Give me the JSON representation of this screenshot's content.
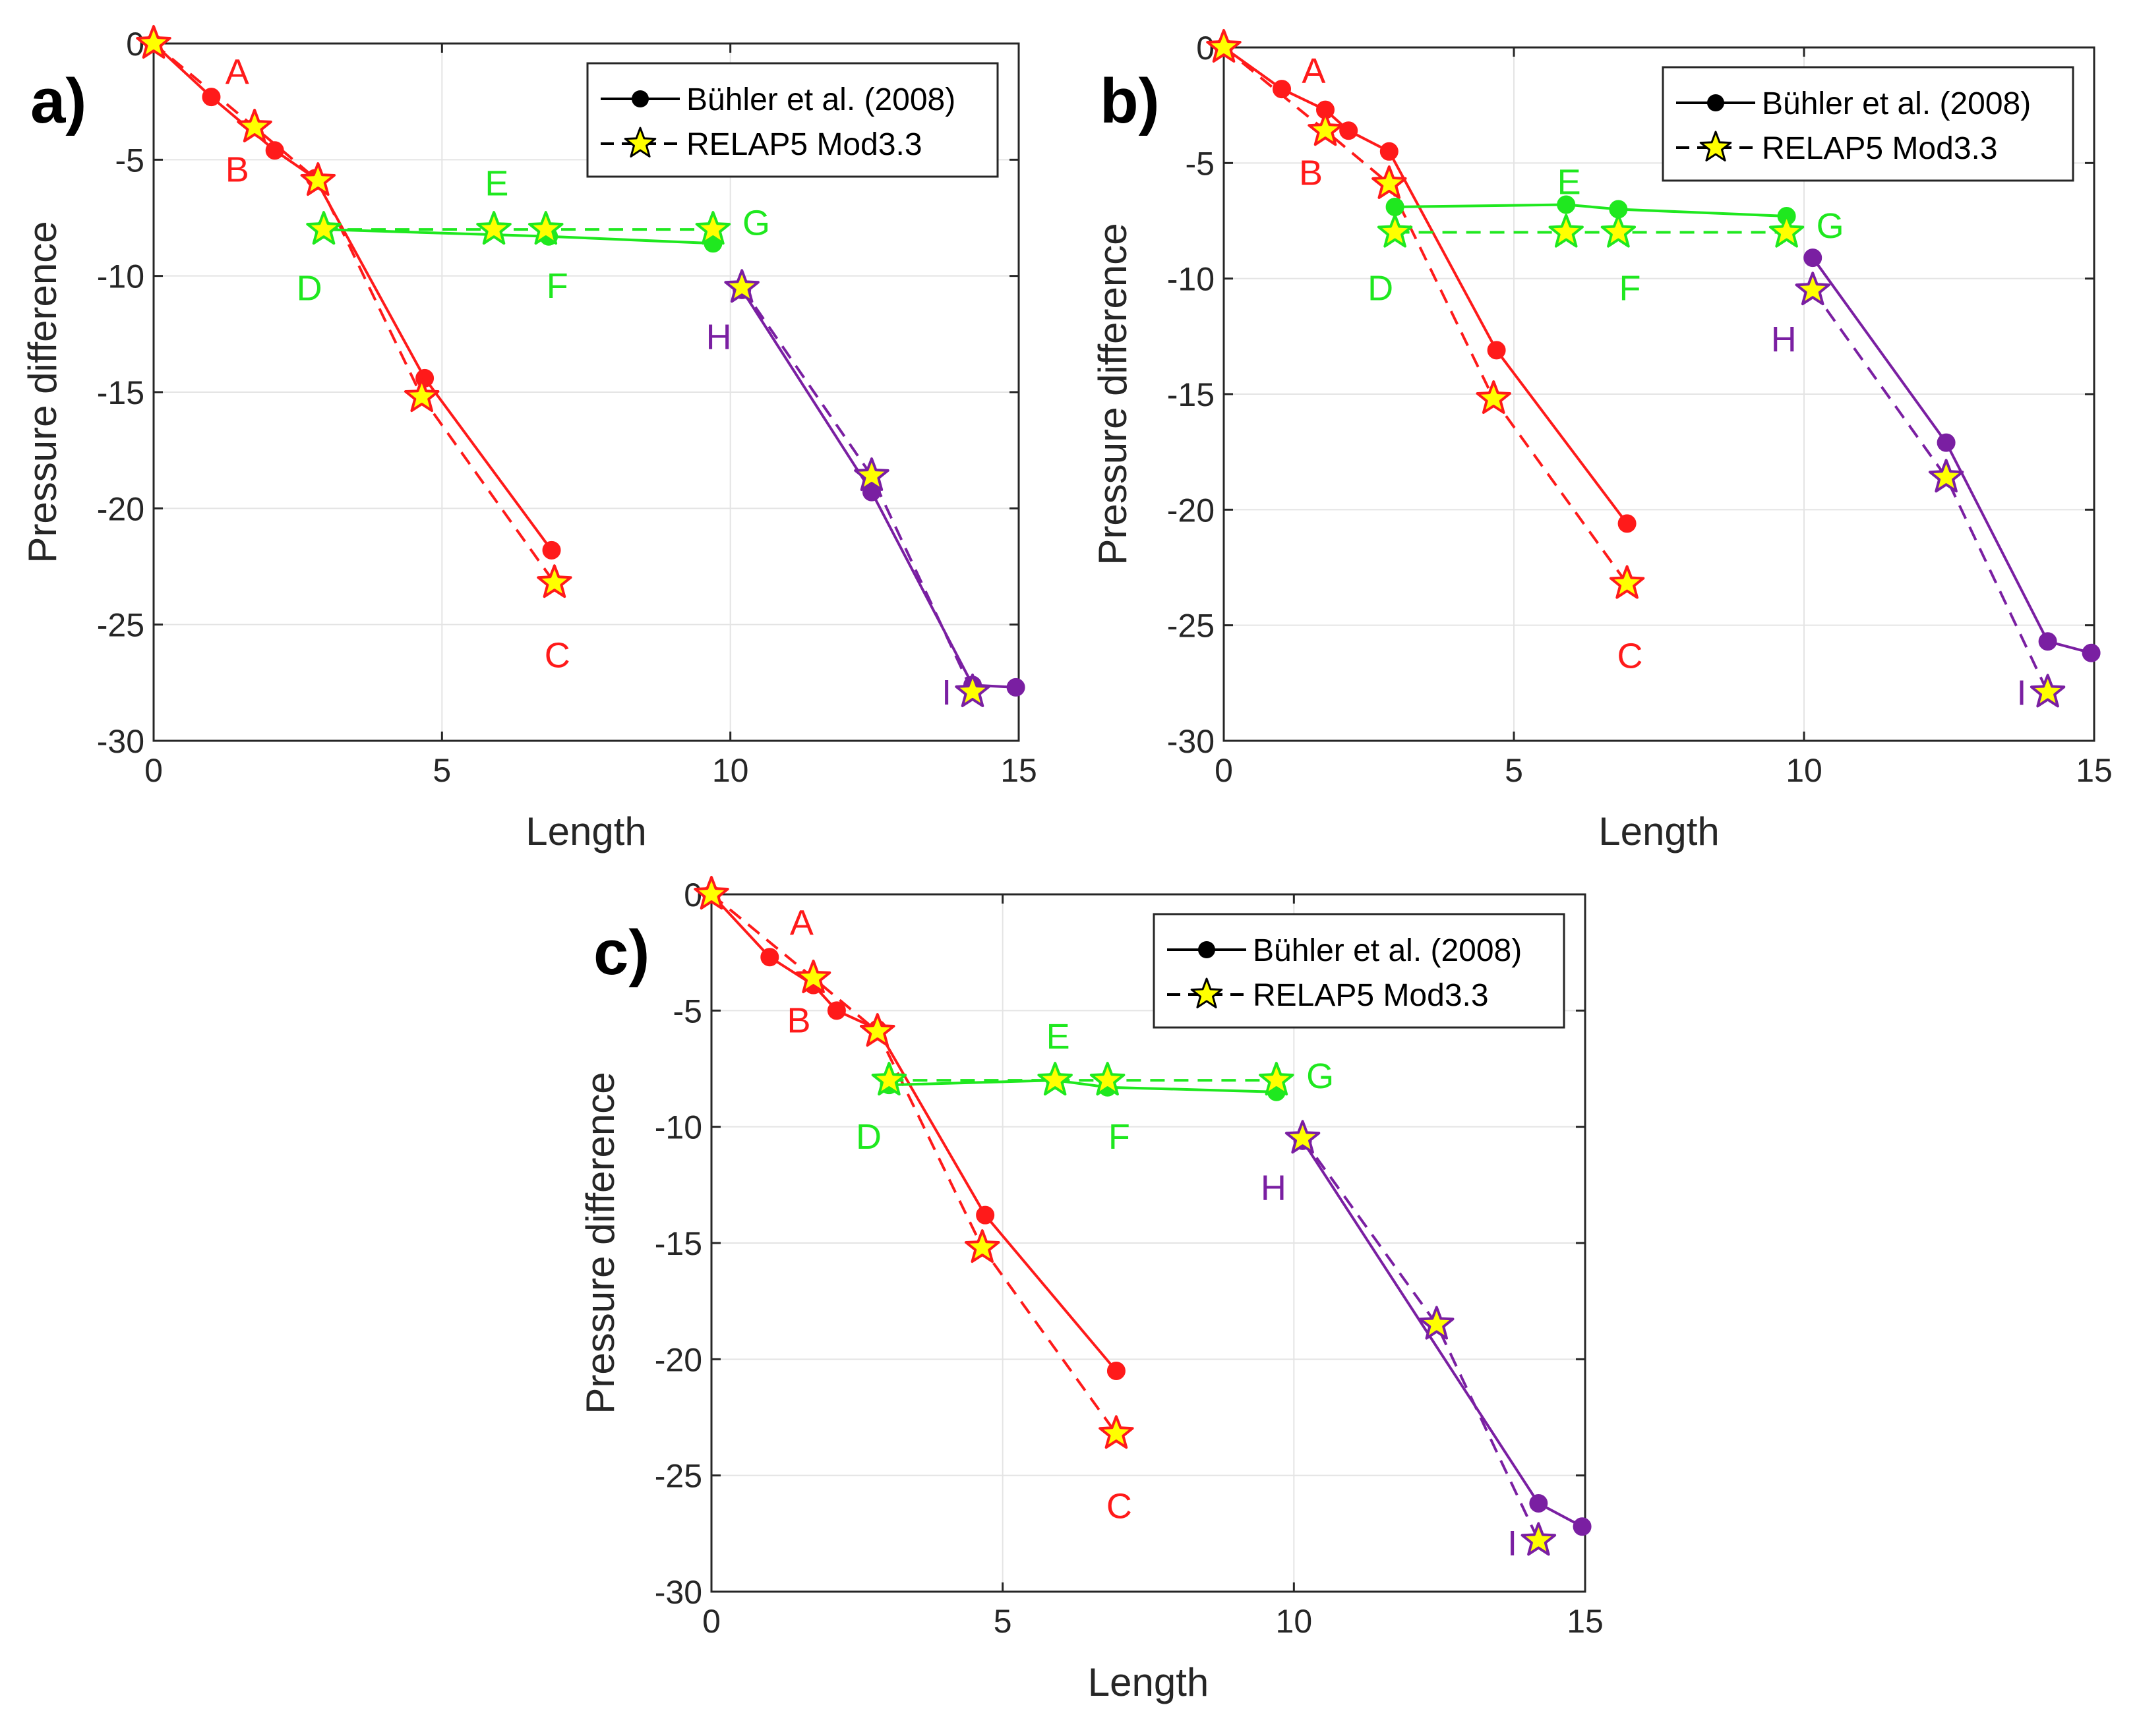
{
  "colors": {
    "red": "#ff1a1a",
    "green": "#1fe81f",
    "purple": "#7a1fa2",
    "star_fill": "#ffff00",
    "grid": "#e4e4e4",
    "axis": "#262626"
  },
  "legend": {
    "exp_label": "Bühler et al. (2008)",
    "sim_label": "RELAP5 Mod3.3"
  },
  "chart_data": [
    {
      "type": "line",
      "panel": "a)",
      "xlabel": "Length",
      "ylabel": "Pressure difference",
      "xlim": [
        0,
        15
      ],
      "ylim": [
        -30,
        0
      ],
      "xticks": [
        0,
        5,
        10,
        15
      ],
      "yticks": [
        0,
        -5,
        -10,
        -15,
        -20,
        -25,
        -30
      ],
      "grid": true,
      "legend_position": "top-right",
      "series": [
        {
          "name": "Bühler et al. (2008)",
          "group": "red",
          "style": "exp",
          "x": [
            0,
            1.0,
            2.1,
            2.8,
            4.7,
            6.9
          ],
          "y": [
            0,
            -2.3,
            -4.6,
            -5.8,
            -14.4,
            -21.8
          ]
        },
        {
          "name": "RELAP5 Mod3.3",
          "group": "red",
          "style": "sim",
          "x": [
            0,
            1.75,
            2.85,
            4.65,
            6.95
          ],
          "y": [
            0,
            -3.6,
            -5.9,
            -15.2,
            -23.2
          ]
        },
        {
          "name": "Bühler et al. (2008)",
          "group": "green",
          "style": "exp",
          "x": [
            2.95,
            6.85,
            9.7
          ],
          "y": [
            -8.0,
            -8.3,
            -8.6
          ]
        },
        {
          "name": "RELAP5 Mod3.3",
          "group": "green",
          "style": "sim",
          "x": [
            2.95,
            5.9,
            6.8,
            9.7
          ],
          "y": [
            -8.0,
            -8.0,
            -8.0,
            -8.0
          ]
        },
        {
          "name": "Bühler et al. (2008)",
          "group": "purple",
          "style": "exp",
          "x": [
            10.2,
            12.45,
            14.2,
            14.95
          ],
          "y": [
            -10.6,
            -19.3,
            -27.6,
            -27.7
          ]
        },
        {
          "name": "RELAP5 Mod3.3",
          "group": "purple",
          "style": "sim",
          "x": [
            10.2,
            12.45,
            14.2
          ],
          "y": [
            -10.5,
            -18.6,
            -27.9
          ]
        }
      ],
      "annotations": [
        {
          "text": "A",
          "x": 1.45,
          "y": -1.2,
          "group": "red"
        },
        {
          "text": "B",
          "x": 1.45,
          "y": -5.4,
          "group": "red"
        },
        {
          "text": "C",
          "x": 7.0,
          "y": -26.3,
          "group": "red"
        },
        {
          "text": "D",
          "x": 2.7,
          "y": -10.5,
          "group": "green"
        },
        {
          "text": "E",
          "x": 5.95,
          "y": -6.0,
          "group": "green"
        },
        {
          "text": "F",
          "x": 7.0,
          "y": -10.4,
          "group": "green"
        },
        {
          "text": "G",
          "x": 10.45,
          "y": -7.7,
          "group": "green"
        },
        {
          "text": "H",
          "x": 9.8,
          "y": -12.6,
          "group": "purple"
        },
        {
          "text": "I",
          "x": 13.75,
          "y": -27.9,
          "group": "purple"
        }
      ]
    },
    {
      "type": "line",
      "panel": "b)",
      "xlabel": "Length",
      "ylabel": "Pressure difference",
      "xlim": [
        0,
        15
      ],
      "ylim": [
        -30,
        0
      ],
      "xticks": [
        0,
        5,
        10,
        15
      ],
      "yticks": [
        0,
        -5,
        -10,
        -15,
        -20,
        -25,
        -30
      ],
      "grid": true,
      "legend_position": "top-right",
      "series": [
        {
          "name": "Bühler et al. (2008)",
          "group": "red",
          "style": "exp",
          "x": [
            0,
            1.0,
            1.75,
            2.15,
            2.85,
            4.7,
            6.95
          ],
          "y": [
            0,
            -1.8,
            -2.7,
            -3.6,
            -4.5,
            -13.1,
            -20.6
          ]
        },
        {
          "name": "RELAP5 Mod3.3",
          "group": "red",
          "style": "sim",
          "x": [
            0,
            1.75,
            2.85,
            4.65,
            6.95
          ],
          "y": [
            0,
            -3.6,
            -5.9,
            -15.2,
            -23.2
          ]
        },
        {
          "name": "Bühler et al. (2008)",
          "group": "green",
          "style": "exp",
          "x": [
            2.95,
            5.9,
            6.8,
            9.7
          ],
          "y": [
            -6.9,
            -6.8,
            -7.0,
            -7.3
          ]
        },
        {
          "name": "RELAP5 Mod3.3",
          "group": "green",
          "style": "sim",
          "x": [
            2.95,
            5.9,
            6.8,
            9.7
          ],
          "y": [
            -8.0,
            -8.0,
            -8.0,
            -8.0
          ]
        },
        {
          "name": "Bühler et al. (2008)",
          "group": "purple",
          "style": "exp",
          "x": [
            10.15,
            12.45,
            14.2,
            14.95
          ],
          "y": [
            -9.1,
            -17.1,
            -25.7,
            -26.2
          ]
        },
        {
          "name": "RELAP5 Mod3.3",
          "group": "purple",
          "style": "sim",
          "x": [
            10.15,
            12.45,
            14.2
          ],
          "y": [
            -10.5,
            -18.6,
            -27.9
          ]
        }
      ],
      "annotations": [
        {
          "text": "A",
          "x": 1.55,
          "y": -1.0,
          "group": "red"
        },
        {
          "text": "B",
          "x": 1.5,
          "y": -5.4,
          "group": "red"
        },
        {
          "text": "C",
          "x": 7.0,
          "y": -26.3,
          "group": "red"
        },
        {
          "text": "D",
          "x": 2.7,
          "y": -10.4,
          "group": "green"
        },
        {
          "text": "E",
          "x": 5.95,
          "y": -5.8,
          "group": "green"
        },
        {
          "text": "F",
          "x": 7.0,
          "y": -10.4,
          "group": "green"
        },
        {
          "text": "G",
          "x": 10.45,
          "y": -7.7,
          "group": "green"
        },
        {
          "text": "H",
          "x": 9.65,
          "y": -12.6,
          "group": "purple"
        },
        {
          "text": "I",
          "x": 13.75,
          "y": -27.9,
          "group": "purple"
        }
      ]
    },
    {
      "type": "line",
      "panel": "c)",
      "xlabel": "Length",
      "ylabel": "Pressure difference",
      "xlim": [
        0,
        15
      ],
      "ylim": [
        -30,
        0
      ],
      "xticks": [
        0,
        5,
        10,
        15
      ],
      "yticks": [
        0,
        -5,
        -10,
        -15,
        -20,
        -25,
        -30
      ],
      "grid": true,
      "legend_position": "top-right",
      "series": [
        {
          "name": "Bühler et al. (2008)",
          "group": "red",
          "style": "exp",
          "x": [
            0,
            1.0,
            1.75,
            2.15,
            2.85,
            4.7,
            6.95
          ],
          "y": [
            0,
            -2.7,
            -3.9,
            -5.0,
            -5.8,
            -13.8,
            -20.5
          ]
        },
        {
          "name": "RELAP5 Mod3.3",
          "group": "red",
          "style": "sim",
          "x": [
            0,
            1.75,
            2.85,
            4.65,
            6.95
          ],
          "y": [
            0,
            -3.6,
            -5.9,
            -15.2,
            -23.2
          ]
        },
        {
          "name": "Bühler et al. (2008)",
          "group": "green",
          "style": "exp",
          "x": [
            3.05,
            5.9,
            6.8,
            9.7
          ],
          "y": [
            -8.2,
            -8.0,
            -8.3,
            -8.5
          ]
        },
        {
          "name": "RELAP5 Mod3.3",
          "group": "green",
          "style": "sim",
          "x": [
            3.05,
            5.9,
            6.8,
            9.7
          ],
          "y": [
            -8.0,
            -8.0,
            -8.0,
            -8.0
          ]
        },
        {
          "name": "Bühler et al. (2008)",
          "group": "purple",
          "style": "exp",
          "x": [
            10.15,
            14.2,
            14.95
          ],
          "y": [
            -10.6,
            -26.2,
            -27.2
          ]
        },
        {
          "name": "RELAP5 Mod3.3",
          "group": "purple",
          "style": "sim",
          "x": [
            10.15,
            12.45,
            14.2
          ],
          "y": [
            -10.5,
            -18.5,
            -27.8
          ]
        }
      ],
      "annotations": [
        {
          "text": "A",
          "x": 1.55,
          "y": -1.2,
          "group": "red"
        },
        {
          "text": "B",
          "x": 1.5,
          "y": -5.4,
          "group": "red"
        },
        {
          "text": "C",
          "x": 7.0,
          "y": -26.3,
          "group": "red"
        },
        {
          "text": "D",
          "x": 2.7,
          "y": -10.4,
          "group": "green"
        },
        {
          "text": "E",
          "x": 5.95,
          "y": -6.1,
          "group": "green"
        },
        {
          "text": "F",
          "x": 7.0,
          "y": -10.4,
          "group": "green"
        },
        {
          "text": "G",
          "x": 10.45,
          "y": -7.8,
          "group": "green"
        },
        {
          "text": "H",
          "x": 9.65,
          "y": -12.6,
          "group": "purple"
        },
        {
          "text": "I",
          "x": 13.75,
          "y": -27.9,
          "group": "purple"
        }
      ]
    }
  ]
}
